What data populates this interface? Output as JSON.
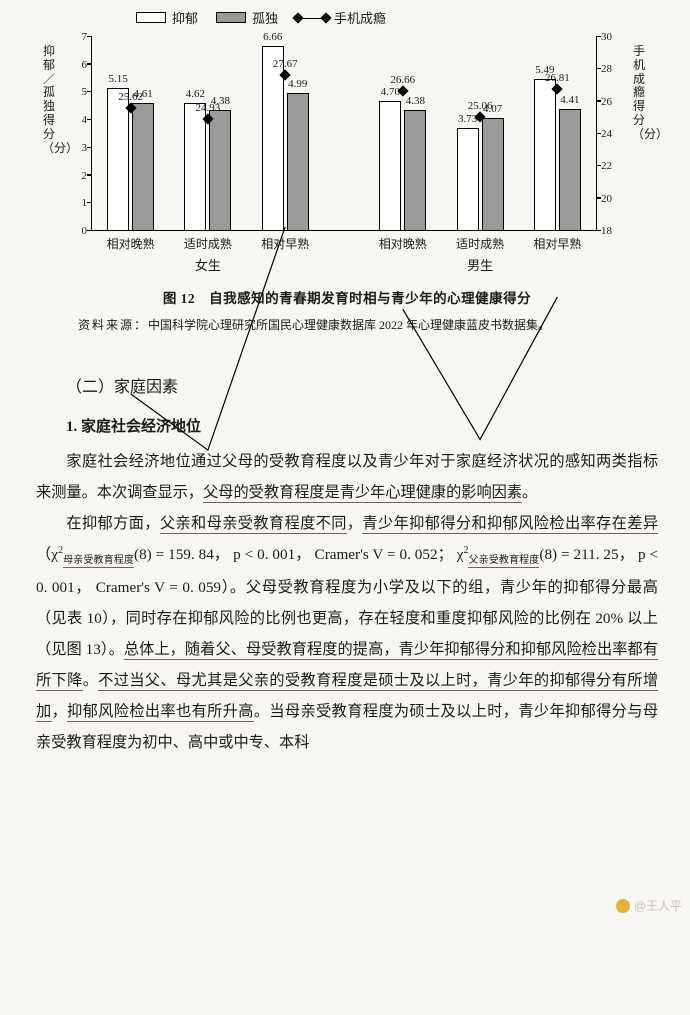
{
  "legend": {
    "dep": "抑郁",
    "lon": "孤独",
    "phone": "手机成瘾"
  },
  "y_left": {
    "title": "抑郁／孤独得分（分）",
    "min": 0,
    "max": 7,
    "step": 1
  },
  "y_right": {
    "title": "手机成瘾得分（分）",
    "min": 18,
    "max": 30,
    "step": 2
  },
  "panels": [
    {
      "sec": "女生",
      "groups": [
        {
          "x": "相对晚熟",
          "dep": 5.15,
          "lon": 4.61,
          "phone": 25.62
        },
        {
          "x": "适时成熟",
          "dep": 4.62,
          "lon": 4.38,
          "phone": 24.93
        },
        {
          "x": "相对早熟",
          "dep": 6.66,
          "lon": 4.99,
          "phone": 27.67
        }
      ]
    },
    {
      "sec": "男生",
      "groups": [
        {
          "x": "相对晚熟",
          "dep": 4.7,
          "lon": 4.38,
          "phone": 26.66
        },
        {
          "x": "适时成熟",
          "dep": 3.73,
          "lon": 4.07,
          "phone": 25.06
        },
        {
          "x": "相对早熟",
          "dep": 5.49,
          "lon": 4.41,
          "phone": 26.81
        }
      ]
    }
  ],
  "fig_caption": "图 12　自我感知的青春期发育时相与青少年的心理健康得分",
  "source_label": "资料来源：",
  "source_text": "中国科学院心理研究所国民心理健康数据库 2022 年心理健康蓝皮书数据集。",
  "section_heading": "（二）家庭因素",
  "sub_heading": "1. 家庭社会经济地位",
  "para1_a": "家庭社会经济地位通过父母的受教育程度以及青少年对于家庭经济状况的感知两类指标来测量。本次调查显示，",
  "para1_u1": "父母的受教育程度是青少年心理健康的影响因素",
  "para1_b": "。",
  "para2_a": "在抑郁方面，",
  "para2_u1": "父亲和母亲受教育程度不同",
  "para2_b": "，",
  "para2_u2": "青少年抑郁得分和抑郁风险检出率存在差异",
  "stats1_a": "（χ",
  "stats1_sub1": "母亲受教育程度",
  "stats1_b": "(8) = 159. 84， p < 0. 001， Cramer's  V = 0. 052；",
  "stats2_a": "χ",
  "stats2_sub1": "父亲受教育程度",
  "stats2_b": "(8) = 211. 25， p < 0. 001， Cramer's  V = 0. 059）。父母受教育程度为小学及以下的组，青少年的抑郁得分最高（见表 10），同时存在抑郁风险的比例也更高，存在轻度和重度抑郁风险的比例在 20% 以上（见图 13）。",
  "para2_u3": "总体上，随着父、母受教育程度的提高，青少年抑郁得分和抑郁风险检出率都有所下降",
  "para2_c": "。",
  "para2_u4": "不过当父、母尤其是父亲的受教育程度是硕士及以上时，青少年的抑郁得分有所增加",
  "para2_d": "，",
  "para2_u5": "抑郁风险检出率也有所升高",
  "para2_e": "。当母亲受教育程度为硕士及以上时，青少年抑郁得分与母亲受教育程度为初中、高中或中专、本科",
  "watermark": "@王人平"
}
